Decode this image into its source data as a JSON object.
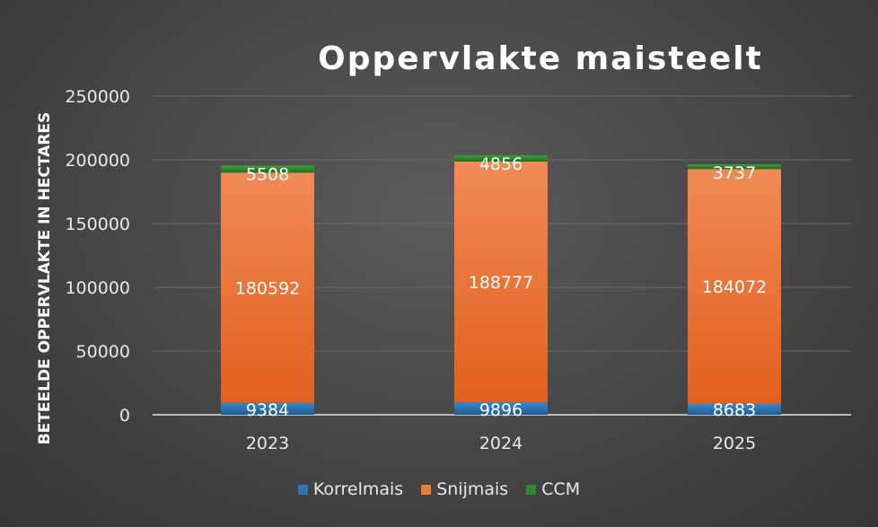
{
  "chart_data": {
    "type": "bar",
    "stacked": true,
    "title": "Oppervlakte maisteelt",
    "ylabel": "BETEELDE OPPERVLAKTE IN HECTARES",
    "xlabel": "",
    "categories": [
      "2023",
      "2024",
      "2025"
    ],
    "ylim": [
      0,
      250000
    ],
    "yticks": [
      "0",
      "50000",
      "100000",
      "150000",
      "200000",
      "250000"
    ],
    "grid": true,
    "legend_position": "bottom",
    "series": [
      {
        "name": "Korrelmais",
        "color": "#2e75b6",
        "values": [
          9384,
          9896,
          8683
        ]
      },
      {
        "name": "Snijmais",
        "color": "#ed7d31",
        "values": [
          180592,
          188777,
          184072
        ]
      },
      {
        "name": "CCM",
        "color": "#2e8b2e",
        "values": [
          5508,
          4856,
          3737
        ]
      }
    ]
  }
}
